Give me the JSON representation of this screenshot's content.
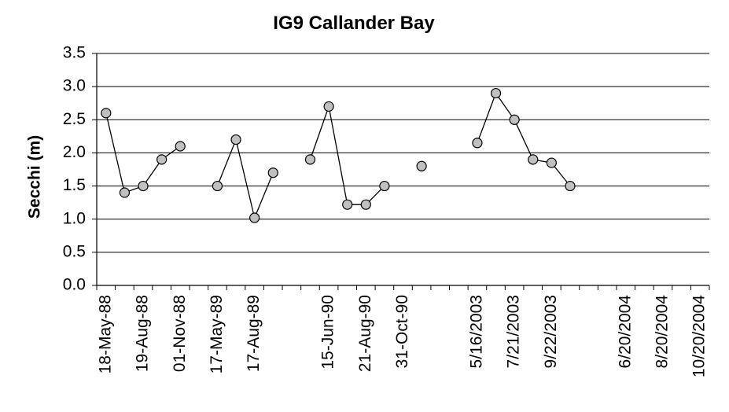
{
  "chart_data": {
    "type": "line",
    "title": "IG9 Callander Bay",
    "xlabel": "",
    "ylabel": "Secchi (m)",
    "ylim": [
      0,
      3.5
    ],
    "yticks": [
      "0.0",
      "0.5",
      "1.0",
      "1.5",
      "2.0",
      "2.5",
      "3.0",
      "3.5"
    ],
    "grid": "horizontal",
    "x_tick_labels": [
      "18-May-88",
      "19-Aug-88",
      "01-Nov-88",
      "17-May-89",
      "17-Aug-89",
      "15-Jun-90",
      "21-Aug-90",
      "31-Oct-90",
      "5/16/2003",
      "7/21/2003",
      "9/22/2003",
      "6/20/2004",
      "8/20/2004",
      "10/20/2004"
    ],
    "x_tick_slots": [
      0.5,
      2.5,
      4.5,
      6.5,
      8.5,
      12.5,
      14.5,
      16.5,
      20.5,
      22.5,
      24.5,
      28.5,
      30.5,
      32.5
    ],
    "slot_count": 33,
    "segments": [
      {
        "x": [
          0.5,
          1.5,
          2.5,
          3.5,
          4.5
        ],
        "values": [
          2.6,
          1.4,
          1.5,
          1.9,
          2.1
        ]
      },
      {
        "x": [
          6.5,
          7.5,
          8.5,
          9.5
        ],
        "values": [
          1.5,
          2.2,
          1.02,
          1.7
        ]
      },
      {
        "x": [
          11.5,
          12.5,
          13.5,
          14.5,
          15.5
        ],
        "values": [
          1.9,
          2.7,
          1.22,
          1.22,
          1.5
        ]
      },
      {
        "x": [
          17.5
        ],
        "values": [
          1.8
        ]
      },
      {
        "x": [
          20.5,
          21.5,
          22.5,
          23.5,
          24.5,
          25.5
        ],
        "values": [
          2.15,
          2.9,
          2.5,
          1.9,
          1.85,
          1.5
        ]
      }
    ],
    "marker": "circle",
    "marker_fill": "#c0c0c0",
    "line_color": "#000000"
  }
}
